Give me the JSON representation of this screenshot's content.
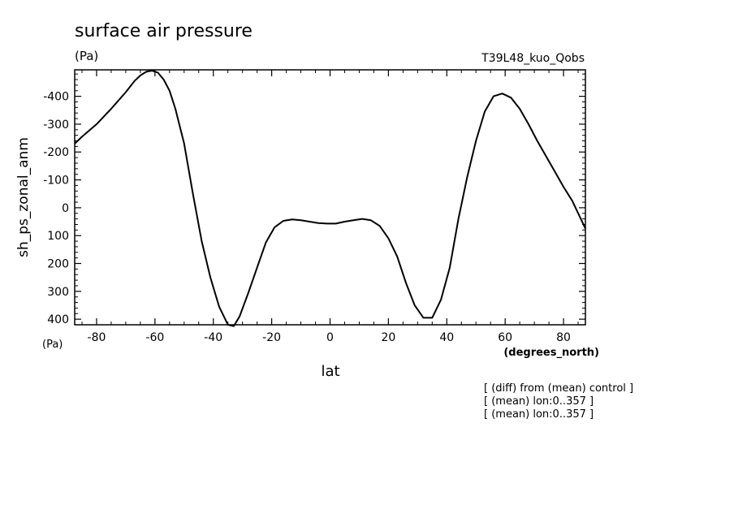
{
  "chart_data": {
    "type": "line",
    "title": "surface air pressure",
    "title_units": "(Pa)",
    "run_label": "T39L48_kuo_Qobs",
    "xlabel": "lat",
    "x_units": "(degrees_north)",
    "ylabel": "sh_ps_zonal_anm",
    "y_units": "(Pa)",
    "y_inverted": true,
    "xlim": [
      -87.5,
      87.5
    ],
    "ylim": [
      420,
      -495
    ],
    "x_ticks": [
      -80,
      -60,
      -40,
      -20,
      0,
      20,
      40,
      60,
      80
    ],
    "x_tick_labels": [
      "-80",
      "-60",
      "-40",
      "-20",
      "0",
      "20",
      "40",
      "60",
      "80"
    ],
    "y_ticks": [
      -400,
      -300,
      -200,
      -100,
      0,
      100,
      200,
      300,
      400
    ],
    "y_tick_labels": [
      "-400",
      "-300",
      "-200",
      "-100",
      "0",
      "100",
      "200",
      "300",
      "400"
    ],
    "grid": false,
    "notes": [
      "[ (diff) from (mean) control ]",
      "[ (mean) lon:0..357 ]",
      "[ (mean) lon:0..357 ]"
    ],
    "series": [
      {
        "x": [
          -87.5,
          -85,
          -80,
          -75,
          -70,
          -67,
          -65,
          -63,
          -61,
          -59,
          -57,
          -55,
          -53,
          -50,
          -47,
          -44,
          -41,
          -38,
          -35,
          -33,
          -31,
          -28,
          -25,
          -22,
          -19,
          -16,
          -13,
          -10,
          -7,
          -4,
          -1,
          2,
          5,
          8,
          11,
          14,
          17,
          20,
          23,
          26,
          29,
          32,
          35,
          38,
          41,
          44,
          47,
          50,
          53,
          56,
          59,
          62,
          65,
          68,
          71,
          74,
          77,
          80,
          83,
          87.5
        ],
        "y": [
          -230,
          -255,
          -300,
          -355,
          -415,
          -455,
          -475,
          -488,
          -492,
          -485,
          -460,
          -420,
          -355,
          -230,
          -50,
          120,
          250,
          355,
          420,
          425,
          390,
          305,
          215,
          125,
          70,
          47,
          42,
          45,
          50,
          55,
          57,
          57,
          50,
          45,
          40,
          45,
          65,
          110,
          175,
          270,
          350,
          395,
          395,
          330,
          215,
          40,
          -110,
          -240,
          -345,
          -400,
          -410,
          -395,
          -355,
          -300,
          -240,
          -185,
          -130,
          -75,
          -25,
          75
        ]
      }
    ]
  }
}
